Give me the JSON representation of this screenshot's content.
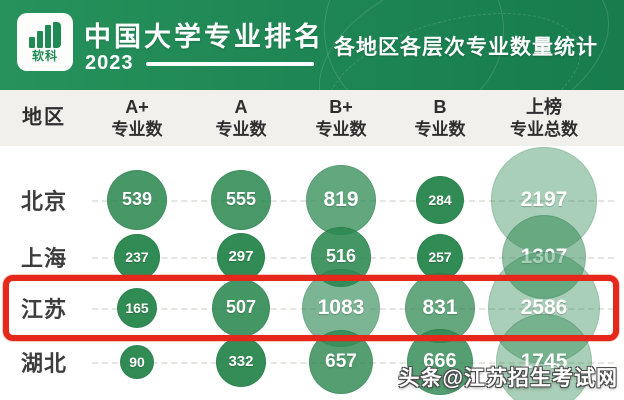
{
  "banner": {
    "logo_text": "软科",
    "title": "中国大学专业排名",
    "year": "2023",
    "subtitle": "各地区各层次专业数量统计"
  },
  "watermark": "头条@江苏招生考试网",
  "colors": {
    "banner_green": "#1e8654",
    "bubble_rgb": "41,134,78",
    "highlight_red": "#e6271b",
    "header_bg": "#f1f0ed"
  },
  "chart_data": {
    "type": "bubble-table",
    "title": "各地区各层次专业数量统计",
    "columns": [
      {
        "line1": "地区",
        "line2": ""
      },
      {
        "line1": "A+",
        "line2": "专业数"
      },
      {
        "line1": "A",
        "line2": "专业数"
      },
      {
        "line1": "B+",
        "line2": "专业数"
      },
      {
        "line1": "B",
        "line2": "专业数"
      },
      {
        "line1": "上榜",
        "line2": "专业总数"
      }
    ],
    "rows": [
      {
        "region": "北京",
        "values": [
          539,
          555,
          819,
          284,
          2197
        ],
        "highlighted": false
      },
      {
        "region": "上海",
        "values": [
          237,
          297,
          516,
          257,
          1307
        ],
        "highlighted": false
      },
      {
        "region": "江苏",
        "values": [
          165,
          507,
          1083,
          831,
          2586
        ],
        "highlighted": true
      },
      {
        "region": "湖北",
        "values": [
          90,
          332,
          657,
          666,
          1745
        ],
        "highlighted": false
      }
    ]
  }
}
